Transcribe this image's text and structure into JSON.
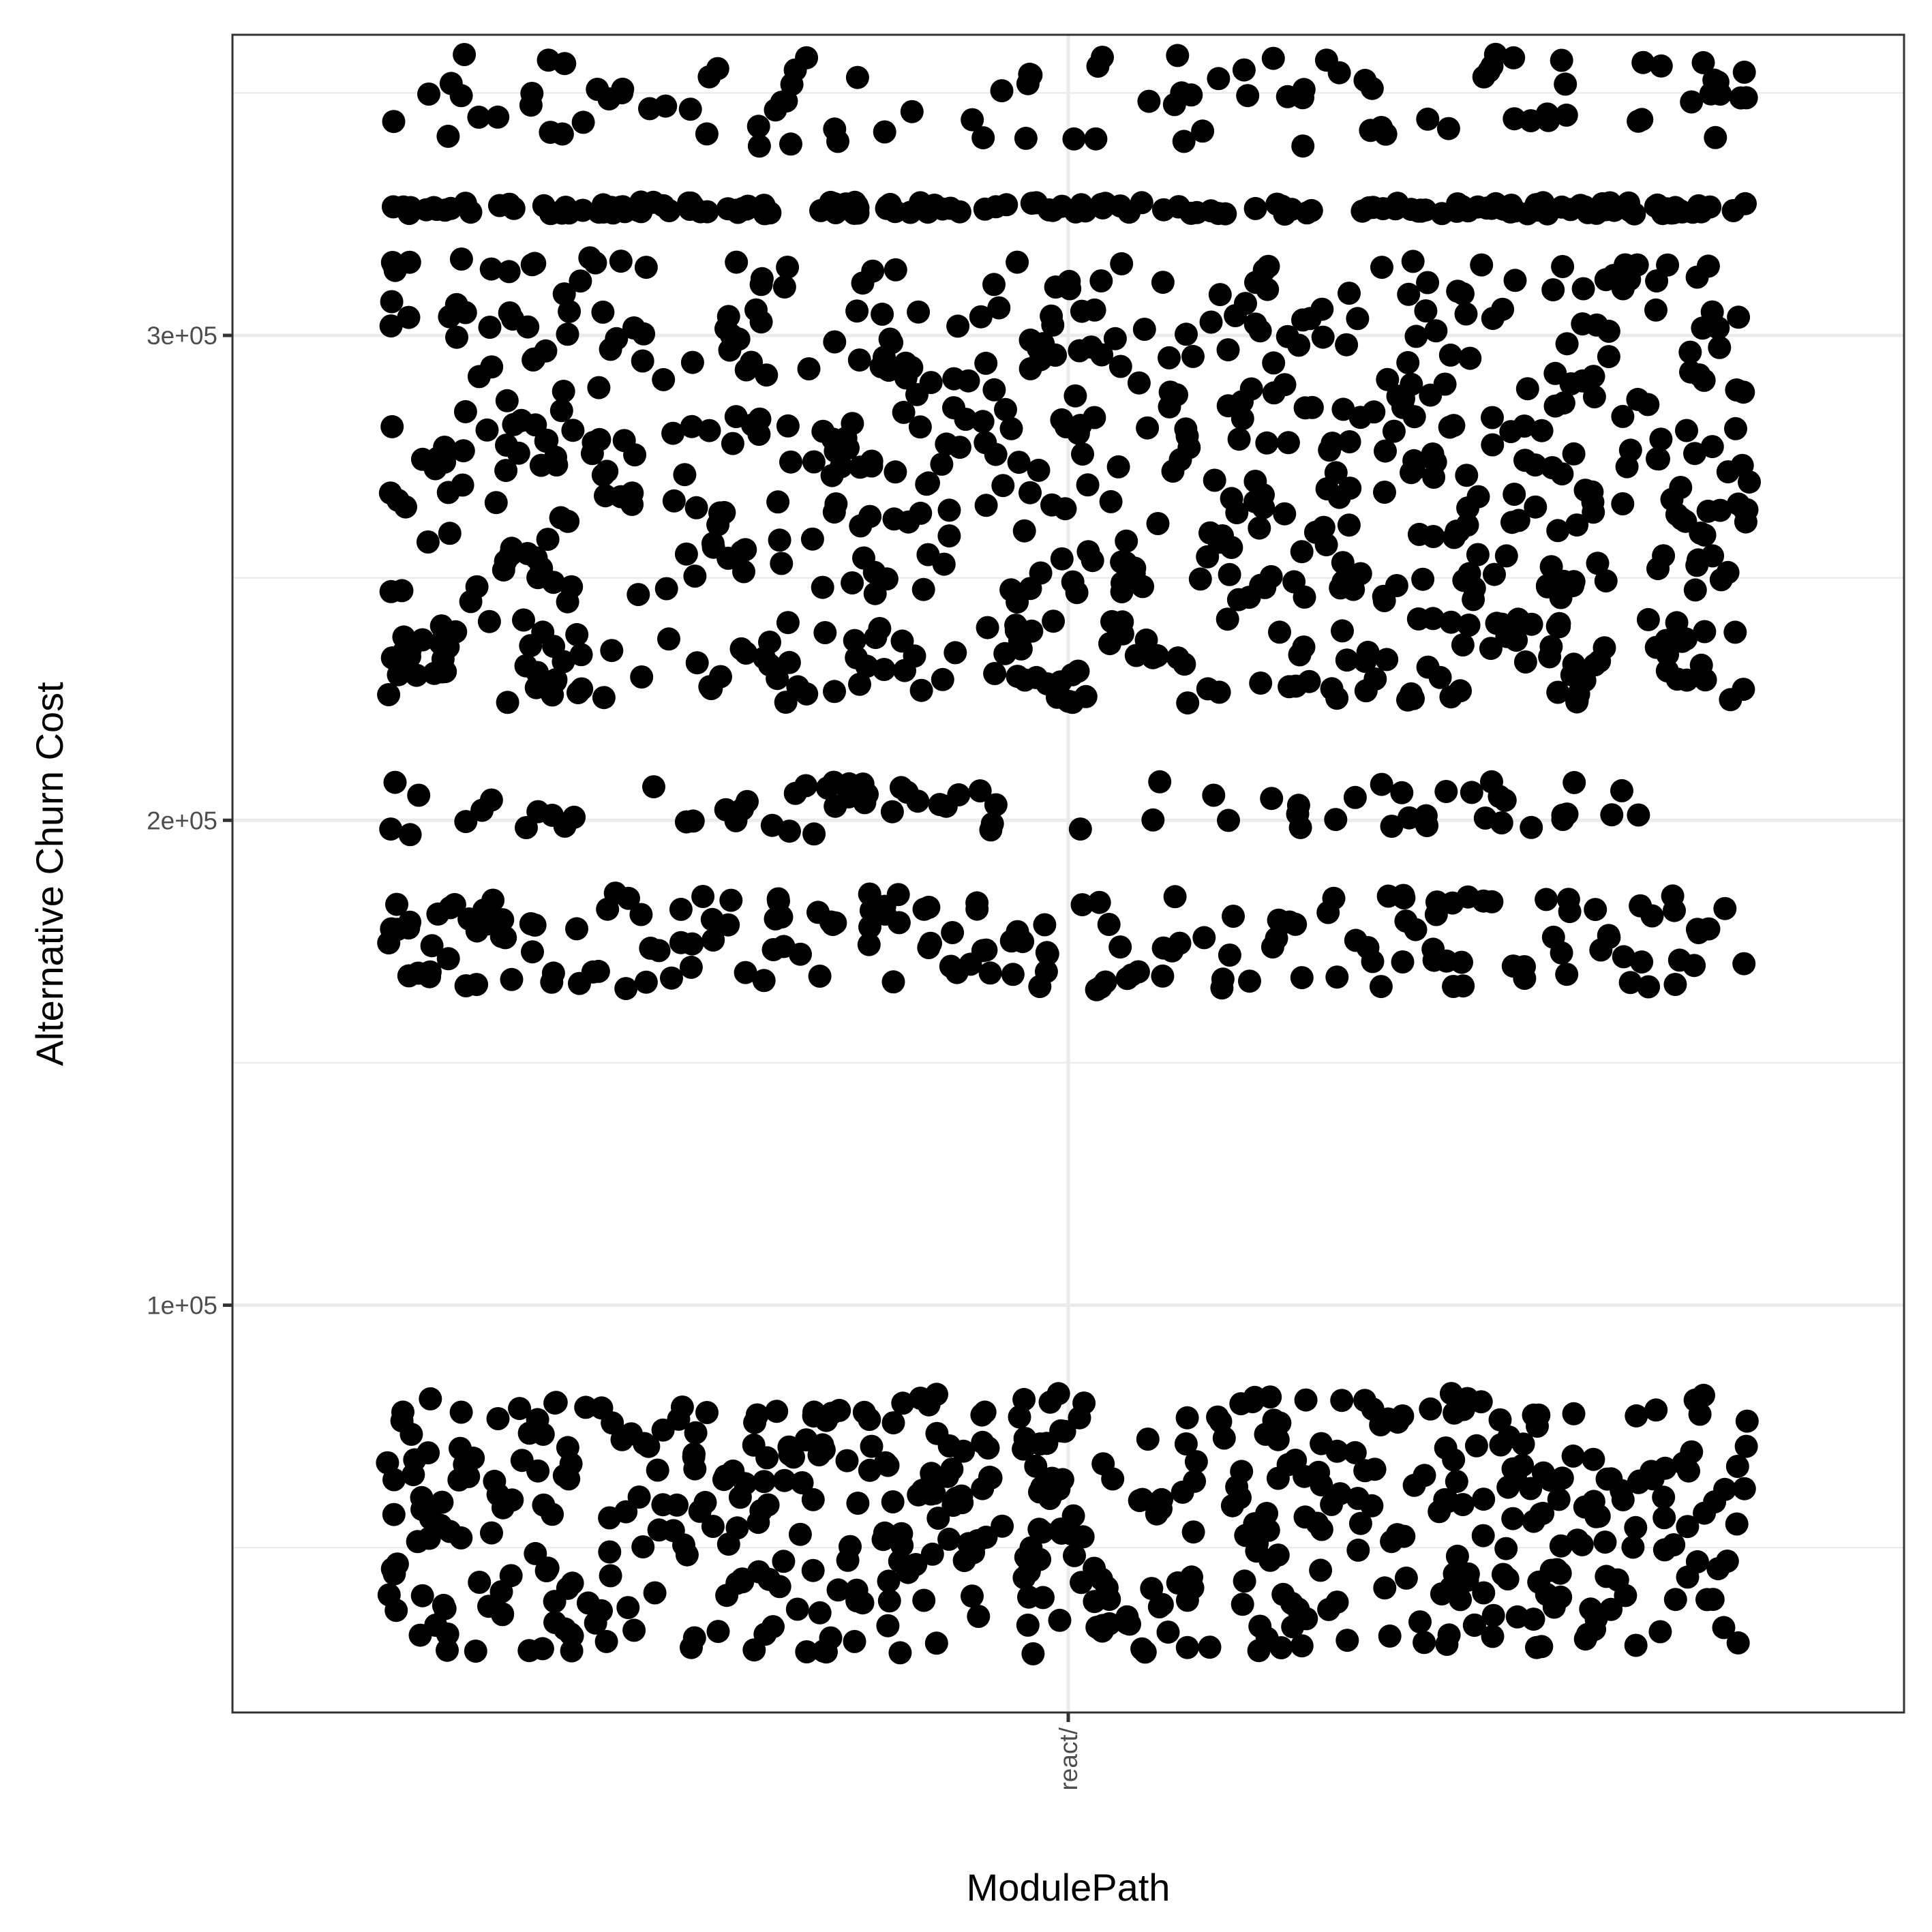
{
  "chart_data": {
    "type": "scatter",
    "subtype": "jitter",
    "title": "",
    "xlabel": "ModulePath",
    "ylabel": "Alternative Churn Cost",
    "categories": [
      "react/"
    ],
    "y_ticks": [
      100000,
      200000,
      300000
    ],
    "y_tick_labels": [
      "1e+05",
      "2e+05",
      "3e+05"
    ],
    "ylim": [
      16000,
      362000
    ],
    "grid": true,
    "legend": "none",
    "point_color": "#000000",
    "background_color": "#ffffff",
    "grid_color": "#ebebeb",
    "series": [
      {
        "category": "react/",
        "value_bands": [
          {
            "y_min": 28000,
            "y_max": 82000,
            "count": 520,
            "note_points": "dense lower cluster"
          },
          {
            "y_min": 165000,
            "y_max": 185000,
            "count": 180
          },
          {
            "y_min": 197000,
            "y_max": 208000,
            "count": 75
          },
          {
            "y_min": 224000,
            "y_max": 242000,
            "count": 170
          },
          {
            "y_min": 245000,
            "y_max": 282000,
            "count": 300
          },
          {
            "y_min": 282000,
            "y_max": 316000,
            "count": 230
          },
          {
            "y_min": 325000,
            "y_max": 327500,
            "count": 170
          },
          {
            "y_min": 339000,
            "y_max": 358000,
            "count": 100
          }
        ]
      }
    ]
  }
}
